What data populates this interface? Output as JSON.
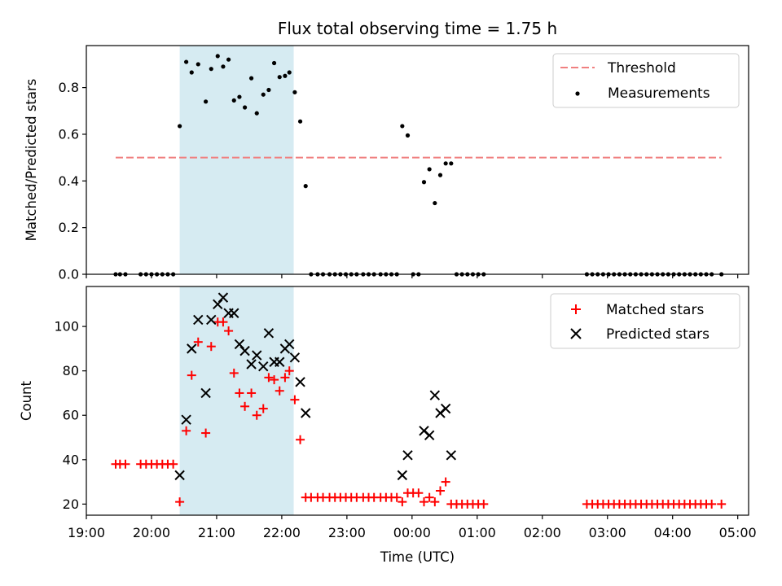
{
  "chart_data": [
    {
      "type": "scatter",
      "title": "Flux total observing time = 1.75 h",
      "xlabel": "",
      "ylabel": "Matched/Predicted stars",
      "xlim": [
        "19:00",
        "05:10"
      ],
      "ylim": [
        0,
        0.98
      ],
      "y_ticks": [
        "0.0",
        "0.2",
        "0.4",
        "0.6",
        "0.8"
      ],
      "highlight_span": {
        "start": "20:26",
        "end": "22:11",
        "color": "#add8e6"
      },
      "threshold": {
        "name": "Threshold",
        "value": 0.5,
        "x_range": [
          "19:27",
          "04:45"
        ],
        "color": "#f08080",
        "style": "dashed"
      },
      "legend": {
        "position": "top-right",
        "entries": [
          "Threshold",
          "Measurements"
        ]
      },
      "series": [
        {
          "name": "Measurements",
          "color": "#000000",
          "marker": "dot",
          "points": [
            [
              "19:27",
              0
            ],
            [
              "19:31",
              0
            ],
            [
              "19:36",
              0
            ],
            [
              "19:50",
              0
            ],
            [
              "19:55",
              0
            ],
            [
              "20:00",
              0
            ],
            [
              "20:05",
              0
            ],
            [
              "20:10",
              0
            ],
            [
              "20:15",
              0
            ],
            [
              "20:20",
              0
            ],
            [
              "20:26",
              0.635
            ],
            [
              "20:32",
              0.91
            ],
            [
              "20:37",
              0.865
            ],
            [
              "20:43",
              0.9
            ],
            [
              "20:50",
              0.74
            ],
            [
              "20:55",
              0.88
            ],
            [
              "21:01",
              0.935
            ],
            [
              "21:06",
              0.89
            ],
            [
              "21:11",
              0.92
            ],
            [
              "21:16",
              0.745
            ],
            [
              "21:21",
              0.76
            ],
            [
              "21:26",
              0.715
            ],
            [
              "21:32",
              0.84
            ],
            [
              "21:37",
              0.69
            ],
            [
              "21:43",
              0.77
            ],
            [
              "21:48",
              0.79
            ],
            [
              "21:53",
              0.905
            ],
            [
              "21:58",
              0.845
            ],
            [
              "22:03",
              0.85
            ],
            [
              "22:07",
              0.865
            ],
            [
              "22:12",
              0.78
            ],
            [
              "22:17",
              0.655
            ],
            [
              "22:22",
              0.378
            ],
            [
              "22:27",
              0
            ],
            [
              "22:33",
              0
            ],
            [
              "22:38",
              0
            ],
            [
              "22:44",
              0
            ],
            [
              "22:49",
              0
            ],
            [
              "22:54",
              0
            ],
            [
              "22:59",
              0
            ],
            [
              "23:04",
              0
            ],
            [
              "23:09",
              0
            ],
            [
              "23:15",
              0
            ],
            [
              "23:20",
              0
            ],
            [
              "23:25",
              0
            ],
            [
              "23:31",
              0
            ],
            [
              "23:36",
              0
            ],
            [
              "23:41",
              0
            ],
            [
              "23:46",
              0
            ],
            [
              "23:51",
              0.635
            ],
            [
              "23:56",
              0.595
            ],
            [
              "00:01",
              0
            ],
            [
              "00:06",
              0
            ],
            [
              "00:11",
              0.395
            ],
            [
              "00:16",
              0.45
            ],
            [
              "00:21",
              0.305
            ],
            [
              "00:26",
              0.425
            ],
            [
              "00:31",
              0.475
            ],
            [
              "00:36",
              0.475
            ],
            [
              "00:41",
              0
            ],
            [
              "00:46",
              0
            ],
            [
              "00:51",
              0
            ],
            [
              "00:56",
              0
            ],
            [
              "01:01",
              0
            ],
            [
              "01:06",
              0
            ],
            [
              "02:41",
              0
            ],
            [
              "02:46",
              0
            ],
            [
              "02:51",
              0
            ],
            [
              "02:56",
              0
            ],
            [
              "03:01",
              0
            ],
            [
              "03:06",
              0
            ],
            [
              "03:11",
              0
            ],
            [
              "03:16",
              0
            ],
            [
              "03:21",
              0
            ],
            [
              "03:26",
              0
            ],
            [
              "03:31",
              0
            ],
            [
              "03:36",
              0
            ],
            [
              "03:41",
              0
            ],
            [
              "03:46",
              0
            ],
            [
              "03:51",
              0
            ],
            [
              "03:56",
              0
            ],
            [
              "04:01",
              0
            ],
            [
              "04:06",
              0
            ],
            [
              "04:11",
              0
            ],
            [
              "04:16",
              0
            ],
            [
              "04:21",
              0
            ],
            [
              "04:26",
              0
            ],
            [
              "04:31",
              0
            ],
            [
              "04:36",
              0
            ],
            [
              "04:45",
              0
            ]
          ]
        }
      ]
    },
    {
      "type": "scatter",
      "title": "",
      "xlabel": "Time (UTC)",
      "ylabel": "Count",
      "xlim": [
        "19:00",
        "05:10"
      ],
      "ylim": [
        15,
        118
      ],
      "x_ticks": [
        "19:00",
        "20:00",
        "21:00",
        "22:00",
        "23:00",
        "00:00",
        "01:00",
        "02:00",
        "03:00",
        "04:00",
        "05:00"
      ],
      "y_ticks": [
        "20",
        "40",
        "60",
        "80",
        "100"
      ],
      "highlight_span": {
        "start": "20:26",
        "end": "22:11",
        "color": "#add8e6"
      },
      "legend": {
        "position": "top-right",
        "entries": [
          "Matched stars",
          "Predicted stars"
        ]
      },
      "series": [
        {
          "name": "Matched stars",
          "color": "#ff0000",
          "marker": "plus",
          "points": [
            [
              "19:27",
              38
            ],
            [
              "19:31",
              38
            ],
            [
              "19:36",
              38
            ],
            [
              "19:50",
              38
            ],
            [
              "19:55",
              38
            ],
            [
              "20:00",
              38
            ],
            [
              "20:05",
              38
            ],
            [
              "20:10",
              38
            ],
            [
              "20:15",
              38
            ],
            [
              "20:20",
              38
            ],
            [
              "20:26",
              21
            ],
            [
              "20:32",
              53
            ],
            [
              "20:37",
              78
            ],
            [
              "20:43",
              93
            ],
            [
              "20:50",
              52
            ],
            [
              "20:55",
              91
            ],
            [
              "21:01",
              102
            ],
            [
              "21:06",
              102
            ],
            [
              "21:11",
              98
            ],
            [
              "21:16",
              79
            ],
            [
              "21:21",
              70
            ],
            [
              "21:26",
              64
            ],
            [
              "21:32",
              70
            ],
            [
              "21:37",
              60
            ],
            [
              "21:43",
              63
            ],
            [
              "21:48",
              77
            ],
            [
              "21:53",
              76
            ],
            [
              "21:58",
              71
            ],
            [
              "22:03",
              77
            ],
            [
              "22:07",
              80
            ],
            [
              "22:12",
              67
            ],
            [
              "22:17",
              49
            ],
            [
              "22:22",
              23
            ],
            [
              "22:27",
              23
            ],
            [
              "22:33",
              23
            ],
            [
              "22:38",
              23
            ],
            [
              "22:44",
              23
            ],
            [
              "22:49",
              23
            ],
            [
              "22:54",
              23
            ],
            [
              "22:59",
              23
            ],
            [
              "23:04",
              23
            ],
            [
              "23:09",
              23
            ],
            [
              "23:15",
              23
            ],
            [
              "23:20",
              23
            ],
            [
              "23:25",
              23
            ],
            [
              "23:31",
              23
            ],
            [
              "23:36",
              23
            ],
            [
              "23:41",
              23
            ],
            [
              "23:46",
              23
            ],
            [
              "23:51",
              21
            ],
            [
              "23:56",
              25
            ],
            [
              "00:01",
              25
            ],
            [
              "00:06",
              25
            ],
            [
              "00:11",
              21
            ],
            [
              "00:16",
              23
            ],
            [
              "00:21",
              21
            ],
            [
              "00:26",
              26
            ],
            [
              "00:31",
              30
            ],
            [
              "00:36",
              20
            ],
            [
              "00:41",
              20
            ],
            [
              "00:46",
              20
            ],
            [
              "00:51",
              20
            ],
            [
              "00:56",
              20
            ],
            [
              "01:01",
              20
            ],
            [
              "01:06",
              20
            ],
            [
              "02:41",
              20
            ],
            [
              "02:46",
              20
            ],
            [
              "02:51",
              20
            ],
            [
              "02:56",
              20
            ],
            [
              "03:01",
              20
            ],
            [
              "03:06",
              20
            ],
            [
              "03:11",
              20
            ],
            [
              "03:16",
              20
            ],
            [
              "03:21",
              20
            ],
            [
              "03:26",
              20
            ],
            [
              "03:31",
              20
            ],
            [
              "03:36",
              20
            ],
            [
              "03:41",
              20
            ],
            [
              "03:46",
              20
            ],
            [
              "03:51",
              20
            ],
            [
              "03:56",
              20
            ],
            [
              "04:01",
              20
            ],
            [
              "04:06",
              20
            ],
            [
              "04:11",
              20
            ],
            [
              "04:16",
              20
            ],
            [
              "04:21",
              20
            ],
            [
              "04:26",
              20
            ],
            [
              "04:31",
              20
            ],
            [
              "04:36",
              20
            ],
            [
              "04:45",
              20
            ]
          ]
        },
        {
          "name": "Predicted stars",
          "color": "#000000",
          "marker": "x",
          "points": [
            [
              "20:26",
              33
            ],
            [
              "20:32",
              58
            ],
            [
              "20:37",
              90
            ],
            [
              "20:43",
              103
            ],
            [
              "20:50",
              70
            ],
            [
              "20:55",
              103
            ],
            [
              "21:01",
              110
            ],
            [
              "21:06",
              113
            ],
            [
              "21:11",
              106
            ],
            [
              "21:16",
              106
            ],
            [
              "21:21",
              92
            ],
            [
              "21:26",
              89
            ],
            [
              "21:32",
              83
            ],
            [
              "21:37",
              87
            ],
            [
              "21:43",
              82
            ],
            [
              "21:48",
              97
            ],
            [
              "21:53",
              84
            ],
            [
              "21:58",
              84
            ],
            [
              "22:03",
              90
            ],
            [
              "22:07",
              92
            ],
            [
              "22:12",
              86
            ],
            [
              "22:17",
              75
            ],
            [
              "22:22",
              61
            ],
            [
              "23:51",
              33
            ],
            [
              "23:56",
              42
            ],
            [
              "00:11",
              53
            ],
            [
              "00:16",
              51
            ],
            [
              "00:21",
              69
            ],
            [
              "00:26",
              61
            ],
            [
              "00:31",
              63
            ],
            [
              "00:36",
              42
            ]
          ]
        }
      ]
    }
  ]
}
